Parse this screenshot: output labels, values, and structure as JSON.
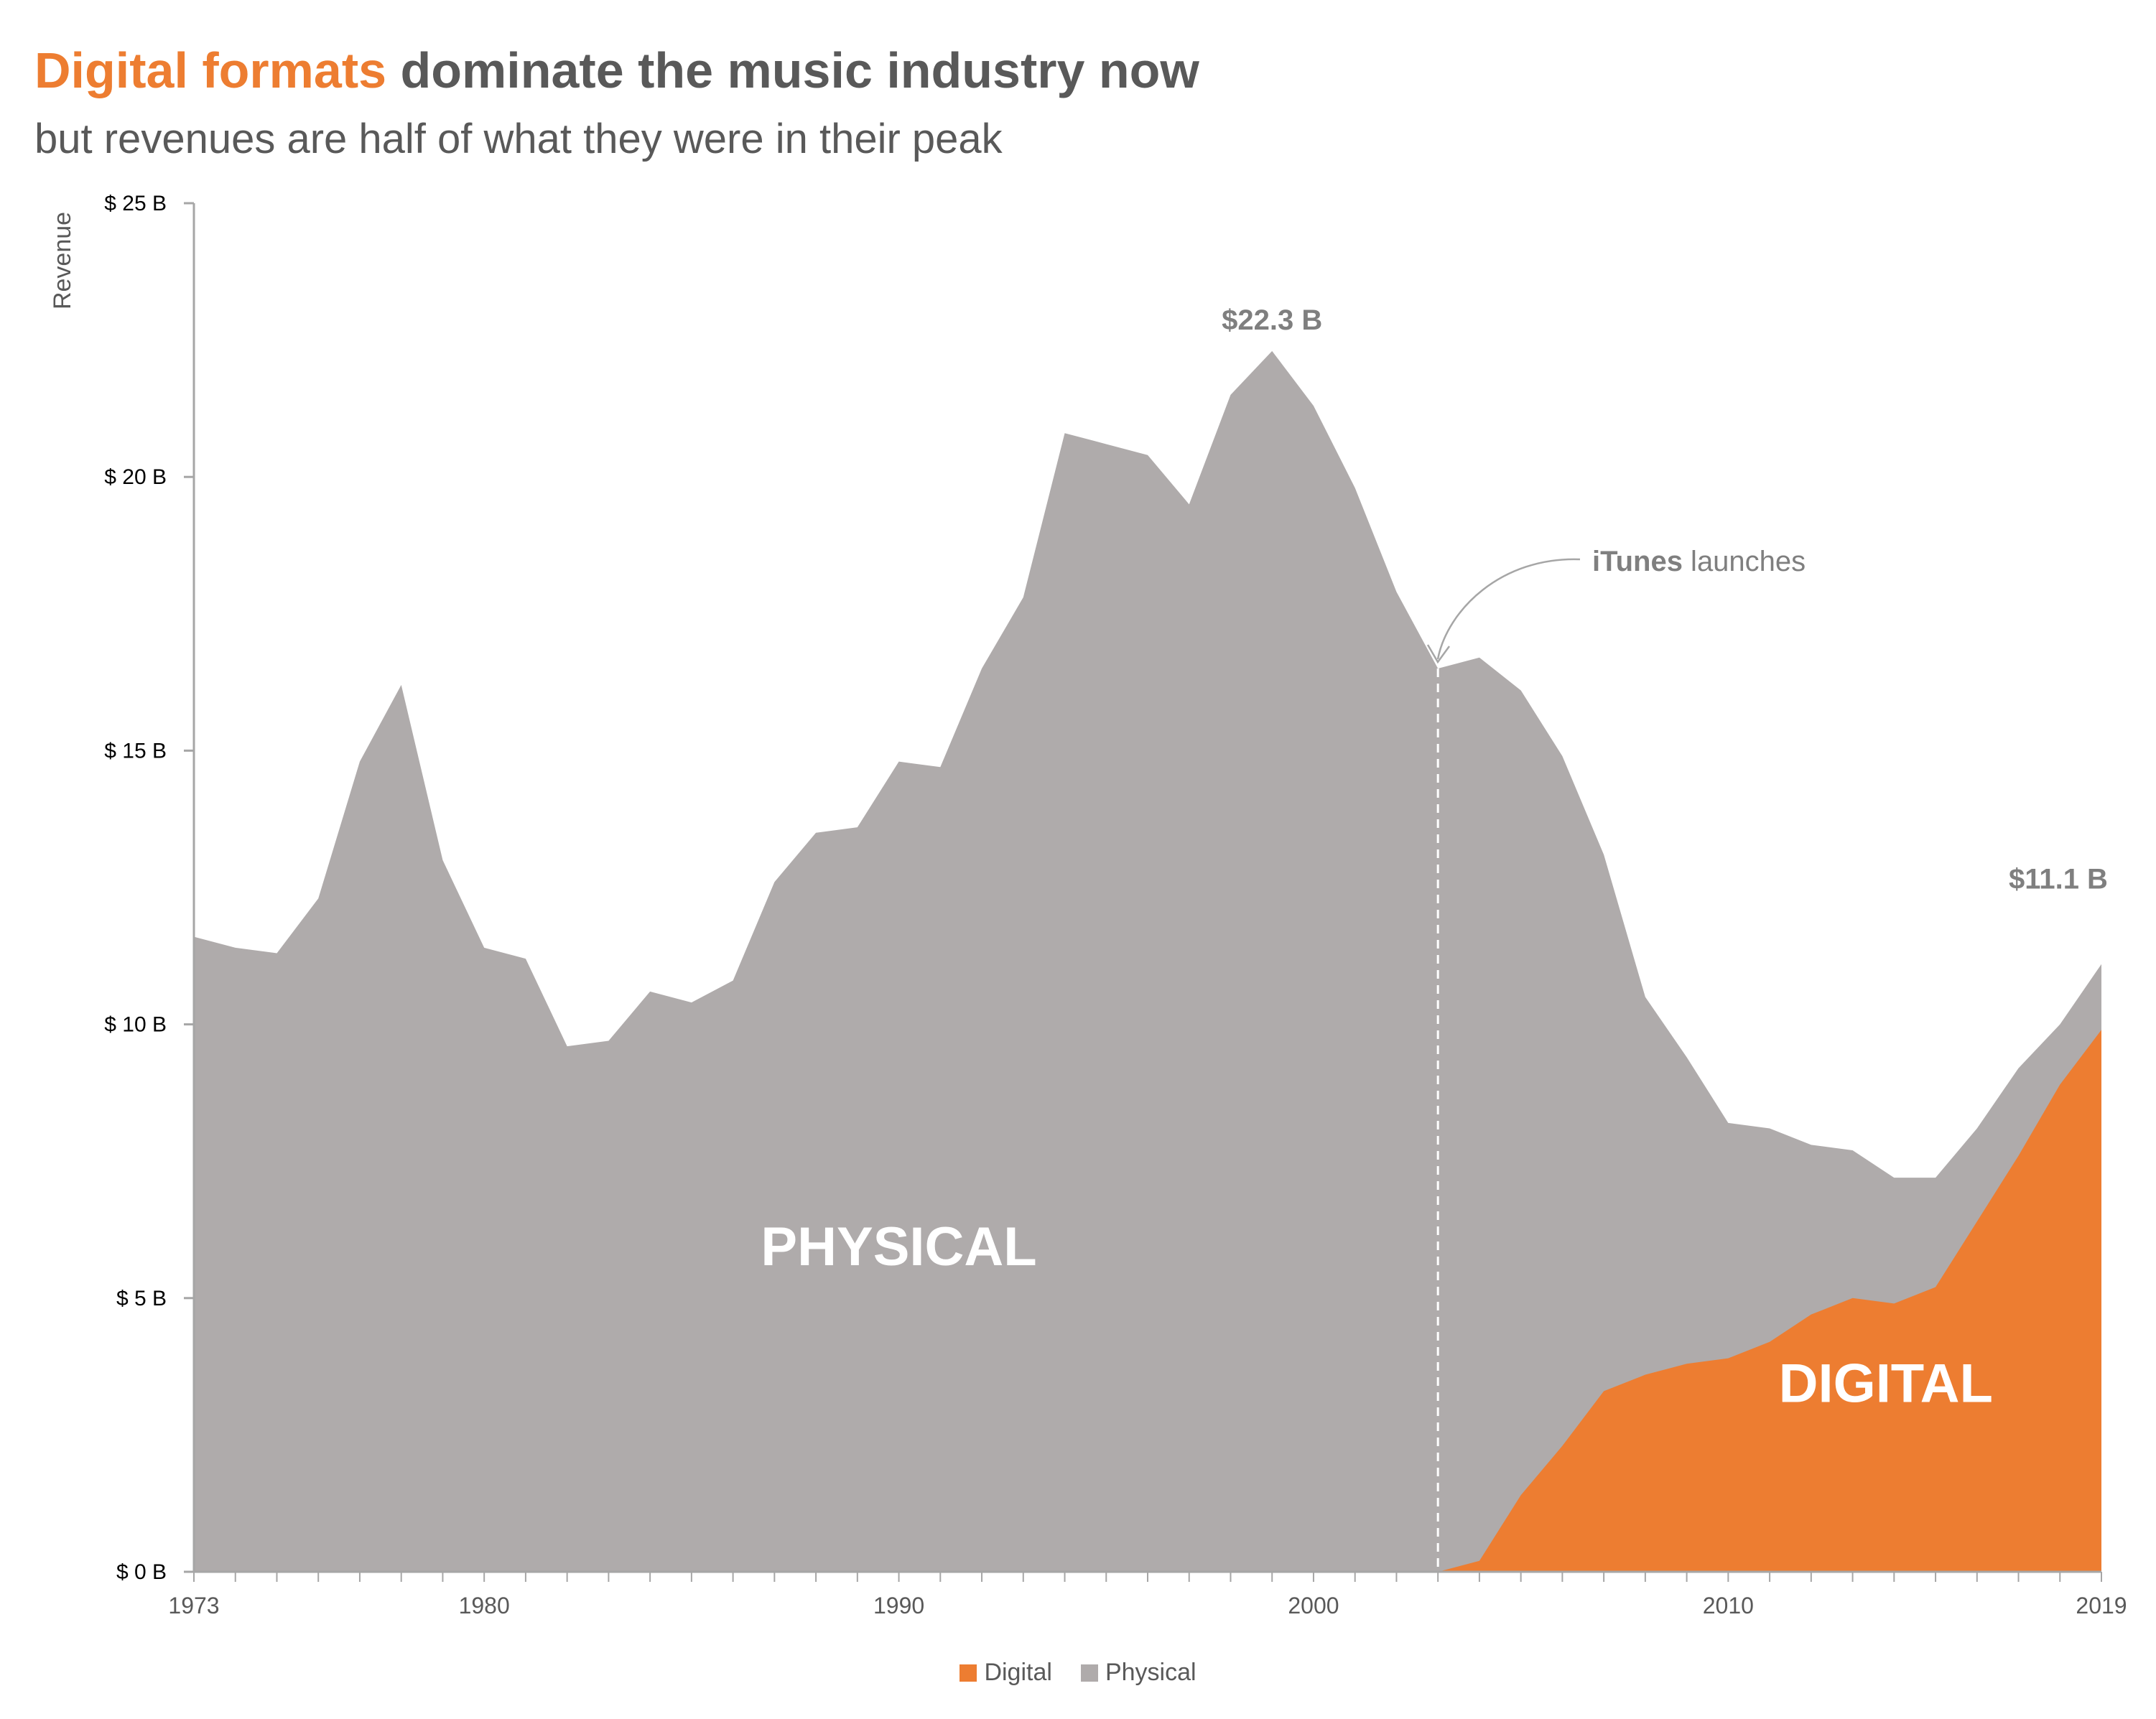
{
  "title": {
    "highlight": "Digital formats",
    "rest": " dominate the music industry now"
  },
  "subtitle": "but revenues are half of what they were in their peak",
  "colors": {
    "digital": "#ED7D31",
    "physical": "#AFABAB",
    "accent": "#ED7D31",
    "text": "#595959"
  },
  "chart_data": {
    "type": "area",
    "stacked": true,
    "x_start": 1973,
    "x_end": 2019,
    "ylabel": "Revenue",
    "ylim": [
      0,
      25
    ],
    "y_ticks": [
      0,
      5,
      10,
      15,
      20,
      25
    ],
    "y_tick_labels": [
      "$ 0 B",
      "$ 5 B",
      "$ 10 B",
      "$ 15 B",
      "$ 20 B",
      "$ 25 B"
    ],
    "x_ticks": [
      1973,
      1980,
      1990,
      2000,
      2010,
      2019
    ],
    "x_tick_labels": [
      "1973",
      "1980",
      "1990",
      "2000",
      "2010",
      "2019"
    ],
    "years": [
      1973,
      1974,
      1975,
      1976,
      1977,
      1978,
      1979,
      1980,
      1981,
      1982,
      1983,
      1984,
      1985,
      1986,
      1987,
      1988,
      1989,
      1990,
      1991,
      1992,
      1993,
      1994,
      1995,
      1996,
      1997,
      1998,
      1999,
      2000,
      2001,
      2002,
      2003,
      2004,
      2005,
      2006,
      2007,
      2008,
      2009,
      2010,
      2011,
      2012,
      2013,
      2014,
      2015,
      2016,
      2017,
      2018,
      2019
    ],
    "series": [
      {
        "name": "Digital",
        "values": [
          0,
          0,
          0,
          0,
          0,
          0,
          0,
          0,
          0,
          0,
          0,
          0,
          0,
          0,
          0,
          0,
          0,
          0,
          0,
          0,
          0,
          0,
          0,
          0,
          0,
          0,
          0,
          0,
          0,
          0,
          0,
          0.2,
          1.4,
          2.3,
          3.3,
          3.6,
          3.8,
          3.9,
          4.2,
          4.7,
          5.0,
          4.9,
          5.2,
          6.4,
          7.6,
          8.9,
          9.9
        ]
      },
      {
        "name": "Physical",
        "values": [
          11.6,
          11.4,
          11.3,
          12.3,
          14.8,
          16.2,
          13.0,
          11.4,
          11.2,
          9.6,
          9.7,
          10.6,
          10.4,
          10.8,
          12.6,
          13.5,
          13.6,
          14.8,
          14.7,
          16.5,
          17.8,
          20.8,
          20.6,
          20.4,
          19.5,
          21.5,
          22.3,
          21.3,
          19.8,
          17.9,
          16.5,
          16.5,
          14.7,
          12.6,
          9.8,
          6.9,
          5.6,
          4.3,
          3.9,
          3.1,
          2.7,
          2.3,
          2.0,
          1.7,
          1.6,
          1.1,
          1.2
        ]
      }
    ],
    "annotations": {
      "peak_label": "$22.3 B",
      "end_label": "$11.1 B",
      "itunes_bold": "iTunes",
      "itunes_rest": " launches",
      "itunes_year": 2003,
      "physical_area_label": "PHYSICAL",
      "digital_area_label": "DIGITAL"
    },
    "legend": [
      {
        "name": "Digital",
        "color": "#ED7D31"
      },
      {
        "name": "Physical",
        "color": "#AFABAB"
      }
    ],
    "legend_position": "bottom"
  }
}
